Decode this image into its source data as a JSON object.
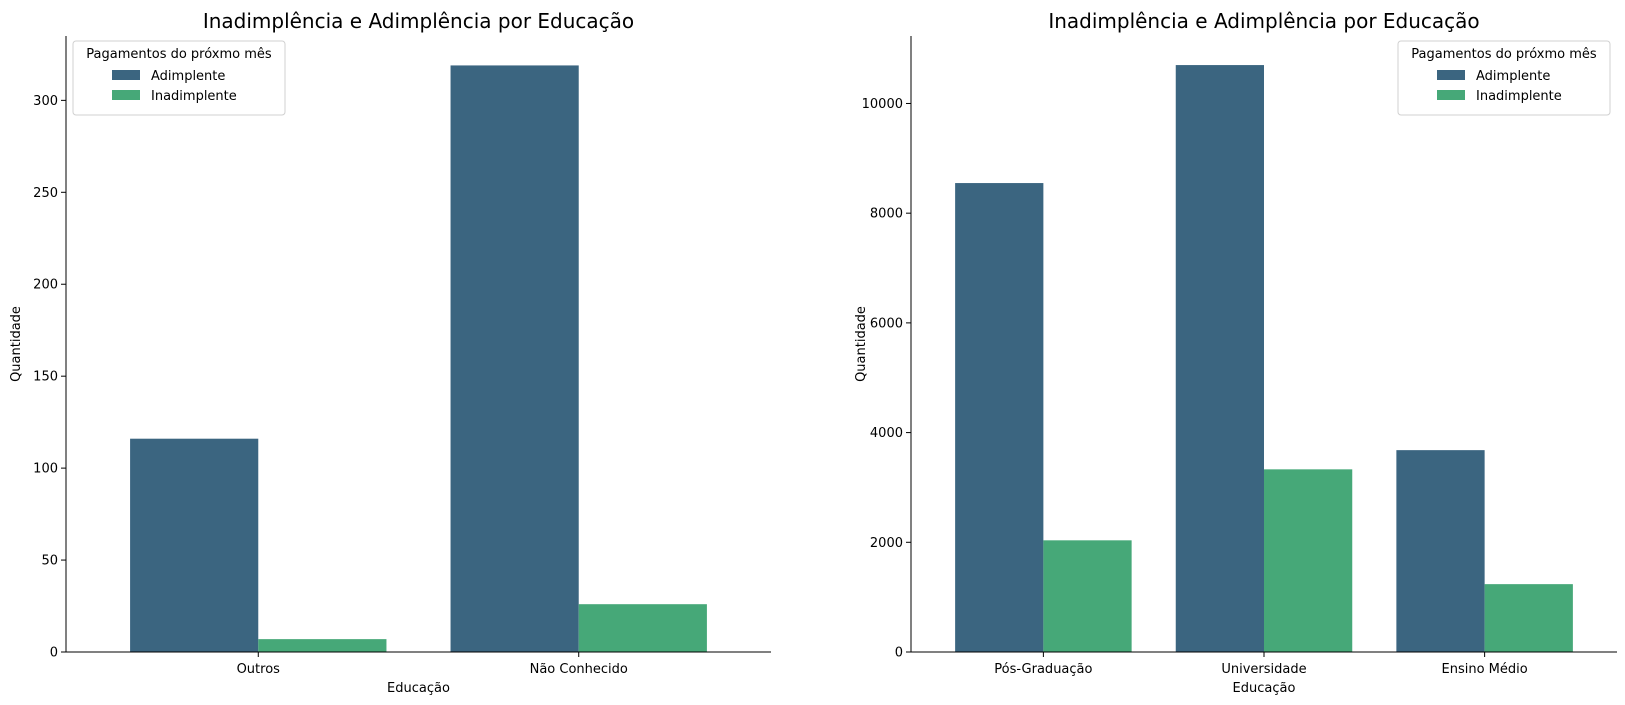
{
  "colors": {
    "adimplente": "#3b6580",
    "inadimplente": "#46a878",
    "axis": "#000000"
  },
  "chart_data": [
    {
      "type": "bar",
      "title": "Inadimplência e Adimplência por Educação",
      "xlabel": "Educação",
      "ylabel": "Quantidade",
      "categories": [
        "Outros",
        "Não Conhecido"
      ],
      "series": [
        {
          "name": "Adimplente",
          "values": [
            116,
            319
          ]
        },
        {
          "name": "Inadimplente",
          "values": [
            7,
            26
          ]
        }
      ],
      "ylim": [
        0,
        335
      ],
      "yticks": [
        0,
        50,
        100,
        150,
        200,
        250,
        300
      ],
      "legend": {
        "title": "Pagamentos do próxmo mês",
        "placement": "top-left"
      },
      "grid": false
    },
    {
      "type": "bar",
      "title": "Inadimplência e Adimplência por Educação",
      "xlabel": "Educação",
      "ylabel": "Quantidade",
      "categories": [
        "Pós-Graduação",
        "Universidade",
        "Ensino Médio"
      ],
      "series": [
        {
          "name": "Adimplente",
          "values": [
            8549,
            10700,
            3680
          ]
        },
        {
          "name": "Inadimplente",
          "values": [
            2036,
            3330,
            1237
          ]
        }
      ],
      "ylim": [
        0,
        11230
      ],
      "yticks": [
        0,
        2000,
        4000,
        6000,
        8000,
        10000
      ],
      "legend": {
        "title": "Pagamentos do próxmo mês",
        "placement": "top-right"
      },
      "grid": false
    }
  ]
}
